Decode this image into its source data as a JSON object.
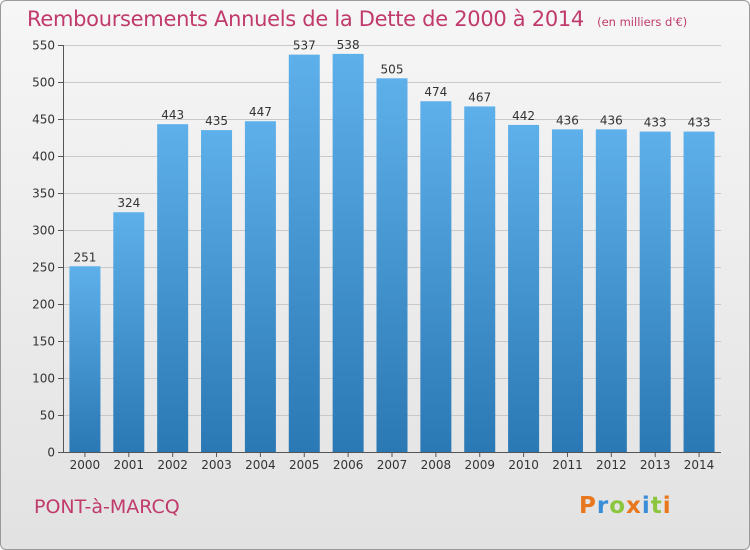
{
  "chart_data": {
    "type": "bar",
    "title": "Remboursements Annuels de la Dette de 2000 à 2014",
    "subtitle": "(en milliers d'€)",
    "xlabel": "",
    "ylabel": "",
    "categories": [
      "2000",
      "2001",
      "2002",
      "2003",
      "2004",
      "2005",
      "2006",
      "2007",
      "2008",
      "2009",
      "2010",
      "2011",
      "2012",
      "2013",
      "2014"
    ],
    "values": [
      251,
      324,
      443,
      435,
      447,
      537,
      538,
      505,
      474,
      467,
      442,
      436,
      436,
      433,
      433
    ],
    "ylim": [
      0,
      550
    ],
    "yticks": [
      0,
      50,
      100,
      150,
      200,
      250,
      300,
      350,
      400,
      450,
      500,
      550
    ],
    "grid": true,
    "bar_color_top": "#5eb0ea",
    "bar_color_bottom": "#2a78b4"
  },
  "footer": {
    "place": "PONT-à-MARCQ",
    "logo_text": "Proxiti",
    "logo_colors": [
      "#e8771e",
      "#3a8ed8",
      "#8cc63f",
      "#e8771e",
      "#3a8ed8",
      "#8cc63f",
      "#e8771e"
    ]
  }
}
